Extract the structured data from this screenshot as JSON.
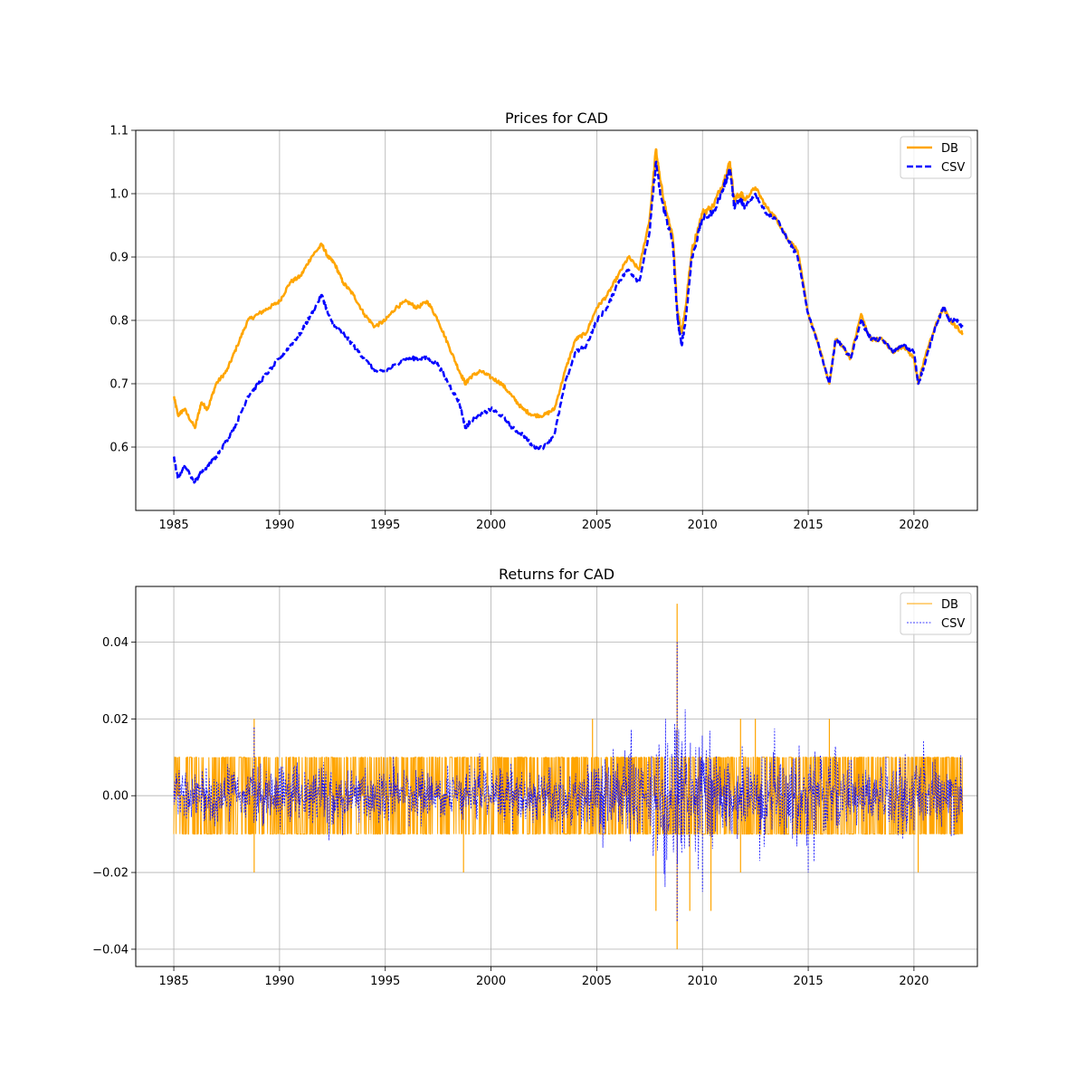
{
  "figure": {
    "background": "#ffffff"
  },
  "chart_data": [
    {
      "type": "line",
      "title": "Prices for CAD",
      "xlabel": "",
      "ylabel": "",
      "xlim": [
        1983.2,
        2023.0
      ],
      "ylim": [
        0.5,
        1.1
      ],
      "x_ticks": [
        1985,
        1990,
        1995,
        2000,
        2005,
        2010,
        2015,
        2020
      ],
      "x_tick_labels": [
        "1985",
        "1990",
        "1995",
        "2000",
        "2005",
        "2010",
        "2015",
        "2020"
      ],
      "y_ticks": [
        0.6,
        0.7,
        0.8,
        0.9,
        1.0,
        1.1
      ],
      "y_tick_labels": [
        "0.6",
        "0.7",
        "0.8",
        "0.9",
        "1.0",
        "1.1"
      ],
      "grid": true,
      "legend": "top-right",
      "series": [
        {
          "name": "DB",
          "color": "#ffa500",
          "style": "solid",
          "x": [
            1985.0,
            1985.2,
            1985.5,
            1986.0,
            1986.3,
            1986.6,
            1987.0,
            1987.5,
            1988.0,
            1988.5,
            1989.0,
            1989.5,
            1990.0,
            1990.5,
            1991.0,
            1991.5,
            1992.0,
            1992.3,
            1992.6,
            1993.0,
            1993.5,
            1994.0,
            1994.5,
            1995.0,
            1995.5,
            1996.0,
            1996.5,
            1997.0,
            1997.5,
            1998.0,
            1998.5,
            1998.8,
            1999.0,
            1999.5,
            2000.0,
            2000.5,
            2001.0,
            2001.5,
            2002.0,
            2002.5,
            2003.0,
            2003.5,
            2004.0,
            2004.5,
            2005.0,
            2005.5,
            2006.0,
            2006.5,
            2007.0,
            2007.5,
            2007.8,
            2008.0,
            2008.3,
            2008.6,
            2008.8,
            2009.0,
            2009.2,
            2009.5,
            2010.0,
            2010.5,
            2011.0,
            2011.3,
            2011.5,
            2011.8,
            2012.0,
            2012.5,
            2013.0,
            2013.5,
            2014.0,
            2014.5,
            2015.0,
            2015.5,
            2016.0,
            2016.3,
            2016.6,
            2017.0,
            2017.5,
            2017.8,
            2018.0,
            2018.5,
            2019.0,
            2019.5,
            2020.0,
            2020.2,
            2020.5,
            2021.0,
            2021.4,
            2021.7,
            2022.0,
            2022.3
          ],
          "values": [
            0.68,
            0.65,
            0.66,
            0.63,
            0.67,
            0.66,
            0.7,
            0.72,
            0.76,
            0.8,
            0.81,
            0.82,
            0.83,
            0.86,
            0.87,
            0.9,
            0.92,
            0.9,
            0.89,
            0.86,
            0.84,
            0.81,
            0.79,
            0.8,
            0.82,
            0.83,
            0.82,
            0.83,
            0.8,
            0.76,
            0.72,
            0.7,
            0.71,
            0.72,
            0.71,
            0.7,
            0.68,
            0.66,
            0.65,
            0.65,
            0.66,
            0.72,
            0.77,
            0.78,
            0.82,
            0.84,
            0.87,
            0.9,
            0.88,
            0.96,
            1.07,
            1.02,
            0.97,
            0.93,
            0.82,
            0.78,
            0.82,
            0.91,
            0.97,
            0.98,
            1.02,
            1.05,
            0.99,
            1.0,
            0.99,
            1.01,
            0.98,
            0.96,
            0.93,
            0.91,
            0.81,
            0.76,
            0.7,
            0.77,
            0.76,
            0.74,
            0.81,
            0.78,
            0.77,
            0.77,
            0.75,
            0.76,
            0.74,
            0.7,
            0.74,
            0.79,
            0.82,
            0.8,
            0.79,
            0.78
          ]
        },
        {
          "name": "CSV",
          "color": "#0000ff",
          "style": "dashed",
          "x": [
            1985.0,
            1985.2,
            1985.5,
            1986.0,
            1986.3,
            1986.6,
            1987.0,
            1987.5,
            1988.0,
            1988.5,
            1989.0,
            1989.5,
            1990.0,
            1990.5,
            1991.0,
            1991.5,
            1992.0,
            1992.3,
            1992.6,
            1993.0,
            1993.5,
            1994.0,
            1994.5,
            1995.0,
            1995.5,
            1996.0,
            1996.5,
            1997.0,
            1997.5,
            1998.0,
            1998.5,
            1998.8,
            1999.0,
            1999.5,
            2000.0,
            2000.5,
            2001.0,
            2001.5,
            2002.0,
            2002.5,
            2003.0,
            2003.5,
            2004.0,
            2004.5,
            2005.0,
            2005.5,
            2006.0,
            2006.5,
            2007.0,
            2007.5,
            2007.8,
            2008.0,
            2008.3,
            2008.6,
            2008.8,
            2009.0,
            2009.2,
            2009.5,
            2010.0,
            2010.5,
            2011.0,
            2011.3,
            2011.5,
            2011.8,
            2012.0,
            2012.5,
            2013.0,
            2013.5,
            2014.0,
            2014.5,
            2015.0,
            2015.5,
            2016.0,
            2016.3,
            2016.6,
            2017.0,
            2017.5,
            2017.8,
            2018.0,
            2018.5,
            2019.0,
            2019.5,
            2020.0,
            2020.2,
            2020.5,
            2021.0,
            2021.4,
            2021.7,
            2022.0,
            2022.3
          ],
          "values": [
            0.585,
            0.55,
            0.57,
            0.545,
            0.56,
            0.57,
            0.585,
            0.61,
            0.64,
            0.68,
            0.7,
            0.72,
            0.74,
            0.76,
            0.78,
            0.81,
            0.84,
            0.81,
            0.79,
            0.78,
            0.76,
            0.74,
            0.72,
            0.72,
            0.73,
            0.74,
            0.74,
            0.74,
            0.73,
            0.7,
            0.67,
            0.63,
            0.64,
            0.65,
            0.66,
            0.65,
            0.63,
            0.62,
            0.6,
            0.6,
            0.62,
            0.7,
            0.75,
            0.76,
            0.8,
            0.82,
            0.86,
            0.88,
            0.86,
            0.94,
            1.05,
            1.0,
            0.96,
            0.92,
            0.81,
            0.76,
            0.8,
            0.9,
            0.96,
            0.97,
            1.01,
            1.04,
            0.98,
            0.99,
            0.98,
            1.0,
            0.97,
            0.96,
            0.93,
            0.9,
            0.81,
            0.76,
            0.7,
            0.77,
            0.76,
            0.74,
            0.8,
            0.78,
            0.77,
            0.77,
            0.75,
            0.76,
            0.75,
            0.7,
            0.73,
            0.79,
            0.82,
            0.8,
            0.8,
            0.79
          ]
        }
      ]
    },
    {
      "type": "line",
      "title": "Returns for CAD",
      "xlabel": "",
      "ylabel": "",
      "xlim": [
        1983.2,
        2023.0
      ],
      "ylim": [
        -0.0445,
        0.0545
      ],
      "x_ticks": [
        1985,
        1990,
        1995,
        2000,
        2005,
        2010,
        2015,
        2020
      ],
      "x_tick_labels": [
        "1985",
        "1990",
        "1995",
        "2000",
        "2005",
        "2010",
        "2015",
        "2020"
      ],
      "y_ticks": [
        -0.04,
        -0.02,
        0.0,
        0.02,
        0.04
      ],
      "y_tick_labels": [
        "−0.04",
        "−0.02",
        "0.00",
        "0.02",
        "0.04"
      ],
      "grid": true,
      "legend": "top-right",
      "series": [
        {
          "name": "DB",
          "color": "#ffa500",
          "style": "solid",
          "x_range": [
            1985.0,
            2022.3
          ],
          "typical_values": [
            -0.01,
            0.0,
            0.01
          ],
          "spikes": [
            {
              "x": 1988.8,
              "value": 0.02
            },
            {
              "x": 1988.8,
              "value": -0.02
            },
            {
              "x": 1998.7,
              "value": -0.02
            },
            {
              "x": 2004.8,
              "value": 0.02
            },
            {
              "x": 2007.8,
              "value": -0.03
            },
            {
              "x": 2008.8,
              "value": 0.05
            },
            {
              "x": 2008.8,
              "value": -0.04
            },
            {
              "x": 2009.4,
              "value": -0.03
            },
            {
              "x": 2010.4,
              "value": -0.03
            },
            {
              "x": 2011.8,
              "value": -0.02
            },
            {
              "x": 2011.8,
              "value": 0.02
            },
            {
              "x": 2012.5,
              "value": 0.02
            },
            {
              "x": 2016.0,
              "value": 0.02
            },
            {
              "x": 2020.2,
              "value": -0.02
            }
          ]
        },
        {
          "name": "CSV",
          "color": "#0000ff",
          "style": "dashed",
          "x_range": [
            1985.0,
            2022.3
          ],
          "spikes": [
            {
              "x": 1988.8,
              "value": 0.018
            },
            {
              "x": 2008.8,
              "value": 0.04
            },
            {
              "x": 2008.8,
              "value": -0.033
            },
            {
              "x": 2010.0,
              "value": -0.025
            },
            {
              "x": 2015.0,
              "value": -0.02
            }
          ]
        }
      ]
    }
  ]
}
